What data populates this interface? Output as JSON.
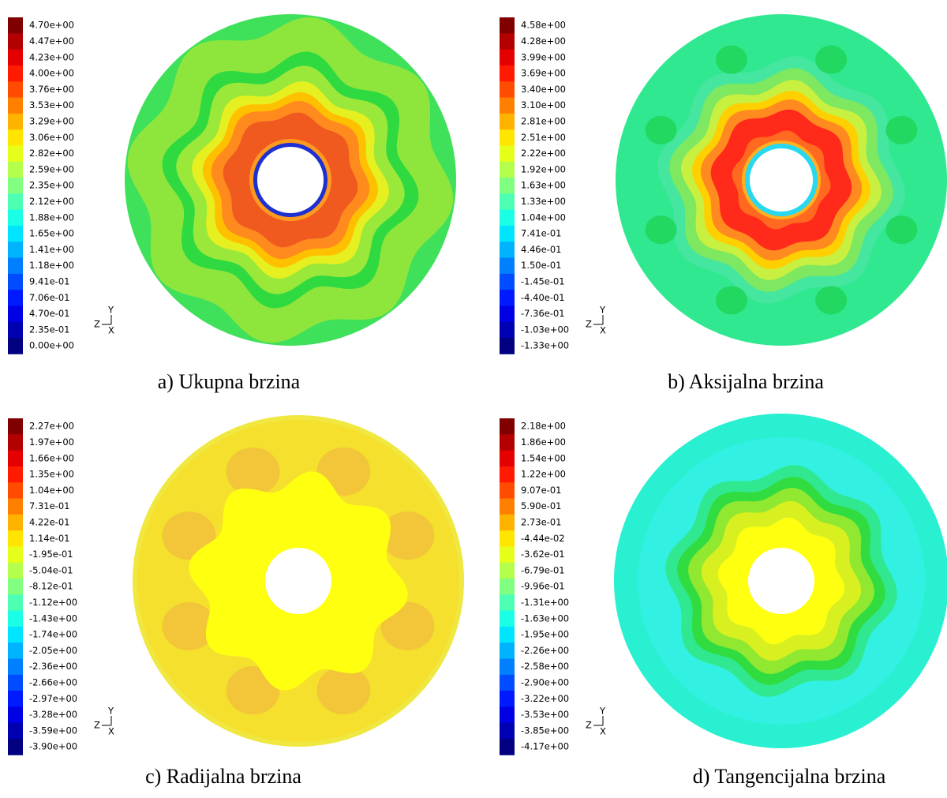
{
  "triad": {
    "y": "Y",
    "z": "Z",
    "x": "X"
  },
  "panels": [
    {
      "caption": "a) Ukupna brzina",
      "colorbar_labels": [
        "4.70e+00",
        "4.47e+00",
        "4.23e+00",
        "4.00e+00",
        "3.76e+00",
        "3.53e+00",
        "3.29e+00",
        "3.06e+00",
        "2.82e+00",
        "2.59e+00",
        "2.35e+00",
        "2.12e+00",
        "1.88e+00",
        "1.65e+00",
        "1.41e+00",
        "1.18e+00",
        "9.41e-01",
        "7.06e-01",
        "4.70e-01",
        "2.35e-01",
        "0.00e+00"
      ]
    },
    {
      "caption": "b) Aksijalna brzina",
      "colorbar_labels": [
        "4.58e+00",
        "4.28e+00",
        "3.99e+00",
        "3.69e+00",
        "3.40e+00",
        "3.10e+00",
        "2.81e+00",
        "2.51e+00",
        "2.22e+00",
        "1.92e+00",
        "1.63e+00",
        "1.33e+00",
        "1.04e+00",
        "7.41e-01",
        "4.46e-01",
        "1.50e-01",
        "-1.45e-01",
        "-4.40e-01",
        "-7.36e-01",
        "-1.03e+00",
        "-1.33e+00"
      ]
    },
    {
      "caption": "c) Radijalna brzina",
      "colorbar_labels": [
        "2.27e+00",
        "1.97e+00",
        "1.66e+00",
        "1.35e+00",
        "1.04e+00",
        "7.31e-01",
        "4.22e-01",
        "1.14e-01",
        "-1.95e-01",
        "-5.04e-01",
        "-8.12e-01",
        "-1.12e+00",
        "-1.43e+00",
        "-1.74e+00",
        "-2.05e+00",
        "-2.36e+00",
        "-2.66e+00",
        "-2.97e+00",
        "-3.28e+00",
        "-3.59e+00",
        "-3.90e+00"
      ]
    },
    {
      "caption": "d) Tangencijalna brzina",
      "colorbar_labels": [
        "2.18e+00",
        "1.86e+00",
        "1.54e+00",
        "1.22e+00",
        "9.07e-01",
        "5.90e-01",
        "2.73e-01",
        "-4.44e-02",
        "-3.62e-01",
        "-6.79e-01",
        "-9.96e-01",
        "-1.31e+00",
        "-1.63e+00",
        "-1.95e+00",
        "-2.26e+00",
        "-2.58e+00",
        "-2.90e+00",
        "-3.22e+00",
        "-3.53e+00",
        "-3.85e+00",
        "-4.17e+00"
      ]
    }
  ]
}
